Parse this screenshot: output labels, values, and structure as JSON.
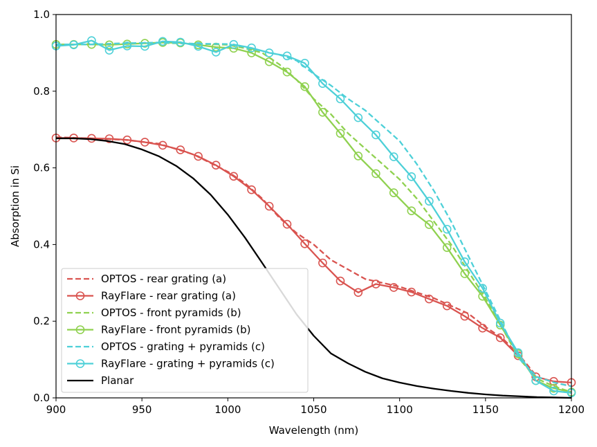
{
  "chart_data": {
    "type": "line",
    "title": "",
    "xlabel": "Wavelength (nm)",
    "ylabel": "Absorption in Si",
    "xlim": [
      900,
      1200
    ],
    "ylim": [
      0.0,
      1.0
    ],
    "xticks": [
      "900",
      "950",
      "1000",
      "1050",
      "1100",
      "1150",
      "1200"
    ],
    "yticks": [
      "0.0",
      "0.2",
      "0.4",
      "0.6",
      "0.8",
      "1.0"
    ],
    "grid": false,
    "legend_position": "lower-left",
    "colors": {
      "red": "#d9534f",
      "green": "#8fd14f",
      "cyan": "#4dd0d8",
      "black": "#000000"
    },
    "series": [
      {
        "name": "OPTOS - rear grating (a)",
        "color": "red",
        "style": "dashed",
        "marker": false,
        "x": [
          900,
          920,
          940,
          960,
          980,
          1000,
          1010,
          1020,
          1030,
          1040,
          1050,
          1060,
          1070,
          1080,
          1090,
          1100,
          1110,
          1120,
          1130,
          1140,
          1150,
          1160,
          1170,
          1180,
          1190,
          1200
        ],
        "y": [
          0.68,
          0.677,
          0.673,
          0.663,
          0.635,
          0.59,
          0.56,
          0.52,
          0.47,
          0.43,
          0.4,
          0.36,
          0.335,
          0.31,
          0.3,
          0.29,
          0.275,
          0.26,
          0.24,
          0.22,
          0.185,
          0.155,
          0.11,
          0.055,
          0.04,
          0.03
        ]
      },
      {
        "name": "RayFlare - rear grating (a)",
        "color": "red",
        "style": "solid",
        "marker": true,
        "x": [
          900,
          910.3,
          920.7,
          931,
          941.4,
          951.7,
          962.1,
          972.4,
          982.8,
          993.1,
          1003.4,
          1013.8,
          1024.1,
          1034.5,
          1044.8,
          1055.2,
          1065.5,
          1075.9,
          1086.2,
          1096.6,
          1106.9,
          1117.2,
          1127.6,
          1137.9,
          1148.3,
          1158.6,
          1169,
          1179.3,
          1189.7,
          1200
        ],
        "y": [
          0.678,
          0.678,
          0.677,
          0.676,
          0.673,
          0.667,
          0.659,
          0.647,
          0.63,
          0.607,
          0.578,
          0.543,
          0.5,
          0.453,
          0.402,
          0.352,
          0.305,
          0.275,
          0.297,
          0.288,
          0.276,
          0.258,
          0.24,
          0.213,
          0.182,
          0.157,
          0.11,
          0.055,
          0.043,
          0.04
        ]
      },
      {
        "name": "OPTOS - front pyramids (b)",
        "color": "green",
        "style": "dashed",
        "marker": false,
        "x": [
          900,
          920,
          940,
          960,
          980,
          1000,
          1010,
          1020,
          1030,
          1040,
          1050,
          1060,
          1070,
          1080,
          1090,
          1100,
          1110,
          1120,
          1130,
          1140,
          1150,
          1160,
          1170,
          1180,
          1190,
          1200
        ],
        "y": [
          0.922,
          0.922,
          0.925,
          0.926,
          0.924,
          0.921,
          0.912,
          0.9,
          0.87,
          0.83,
          0.78,
          0.74,
          0.69,
          0.65,
          0.61,
          0.57,
          0.52,
          0.46,
          0.4,
          0.33,
          0.26,
          0.18,
          0.1,
          0.05,
          0.03,
          0.015
        ]
      },
      {
        "name": "RayFlare - front pyramids (b)",
        "color": "green",
        "style": "solid",
        "marker": true,
        "x": [
          900,
          910.3,
          920.7,
          931,
          941.4,
          951.7,
          962.1,
          972.4,
          982.8,
          993.1,
          1003.4,
          1013.8,
          1024.1,
          1034.5,
          1044.8,
          1055.2,
          1065.5,
          1075.9,
          1086.2,
          1096.6,
          1106.9,
          1117.2,
          1127.6,
          1137.9,
          1148.3,
          1158.6,
          1169,
          1179.3,
          1189.7,
          1200
        ],
        "y": [
          0.922,
          0.922,
          0.922,
          0.921,
          0.923,
          0.925,
          0.927,
          0.926,
          0.921,
          0.915,
          0.912,
          0.9,
          0.877,
          0.85,
          0.812,
          0.745,
          0.69,
          0.631,
          0.585,
          0.535,
          0.488,
          0.452,
          0.392,
          0.324,
          0.265,
          0.19,
          0.115,
          0.045,
          0.025,
          0.015
        ]
      },
      {
        "name": "OPTOS - grating + pyramids (c)",
        "color": "cyan",
        "style": "dashed",
        "marker": false,
        "x": [
          900,
          920,
          940,
          960,
          980,
          1000,
          1010,
          1020,
          1030,
          1040,
          1050,
          1060,
          1070,
          1080,
          1090,
          1100,
          1110,
          1120,
          1130,
          1140,
          1150,
          1160,
          1170,
          1180,
          1190,
          1200
        ],
        "y": [
          0.922,
          0.922,
          0.925,
          0.927,
          0.924,
          0.923,
          0.915,
          0.905,
          0.895,
          0.88,
          0.845,
          0.815,
          0.78,
          0.75,
          0.71,
          0.67,
          0.61,
          0.54,
          0.46,
          0.37,
          0.28,
          0.19,
          0.1,
          0.055,
          0.04,
          0.03
        ]
      },
      {
        "name": "RayFlare - grating + pyramids (c)",
        "color": "cyan",
        "style": "solid",
        "marker": true,
        "x": [
          900,
          910.3,
          920.7,
          931,
          941.4,
          951.7,
          962.1,
          972.4,
          982.8,
          993.1,
          1003.4,
          1013.8,
          1024.1,
          1034.5,
          1044.8,
          1055.2,
          1065.5,
          1075.9,
          1086.2,
          1096.6,
          1106.9,
          1117.2,
          1127.6,
          1137.9,
          1148.3,
          1158.6,
          1169,
          1179.3,
          1189.7,
          1200
        ],
        "y": [
          0.918,
          0.921,
          0.932,
          0.907,
          0.918,
          0.917,
          0.93,
          0.928,
          0.917,
          0.902,
          0.922,
          0.913,
          0.9,
          0.892,
          0.873,
          0.82,
          0.78,
          0.731,
          0.686,
          0.629,
          0.577,
          0.513,
          0.44,
          0.355,
          0.286,
          0.195,
          0.118,
          0.045,
          0.018,
          0.013
        ]
      },
      {
        "name": "Planar",
        "color": "black",
        "style": "solid",
        "marker": false,
        "x": [
          900,
          910,
          920,
          930,
          940,
          950,
          960,
          970,
          980,
          990,
          1000,
          1010,
          1020,
          1030,
          1040,
          1050,
          1060,
          1070,
          1080,
          1090,
          1100,
          1110,
          1120,
          1130,
          1140,
          1150,
          1160,
          1170,
          1180,
          1190,
          1200
        ],
        "y": [
          0.677,
          0.677,
          0.675,
          0.67,
          0.662,
          0.648,
          0.63,
          0.605,
          0.572,
          0.53,
          0.478,
          0.418,
          0.352,
          0.285,
          0.218,
          0.162,
          0.116,
          0.09,
          0.068,
          0.051,
          0.04,
          0.031,
          0.024,
          0.018,
          0.013,
          0.009,
          0.006,
          0.004,
          0.002,
          0.001,
          0.0
        ]
      }
    ]
  }
}
